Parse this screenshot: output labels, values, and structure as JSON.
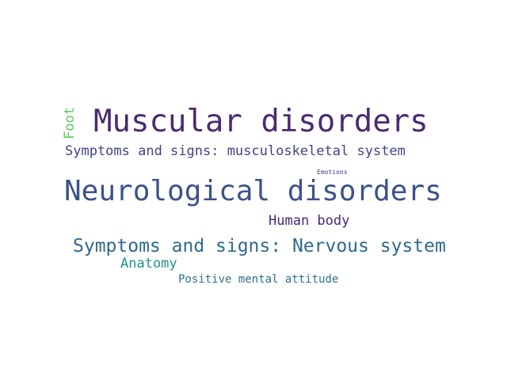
{
  "word_cloud": {
    "words": [
      {
        "text": "Muscular disorders",
        "color": "#4b2a72"
      },
      {
        "text": "Foot",
        "color": "#5ec962"
      },
      {
        "text": "Symptoms and signs: musculoskeletal system",
        "color": "#414487"
      },
      {
        "text": "Emotions",
        "color": "#46337e"
      },
      {
        "text": "Neurological disorders",
        "color": "#3b528b"
      },
      {
        "text": "Human body",
        "color": "#482878"
      },
      {
        "text": "Symptoms and signs: Nervous system",
        "color": "#31688e"
      },
      {
        "text": "Anatomy",
        "color": "#21918c"
      },
      {
        "text": "Positive mental attitude",
        "color": "#2c728e"
      }
    ]
  }
}
